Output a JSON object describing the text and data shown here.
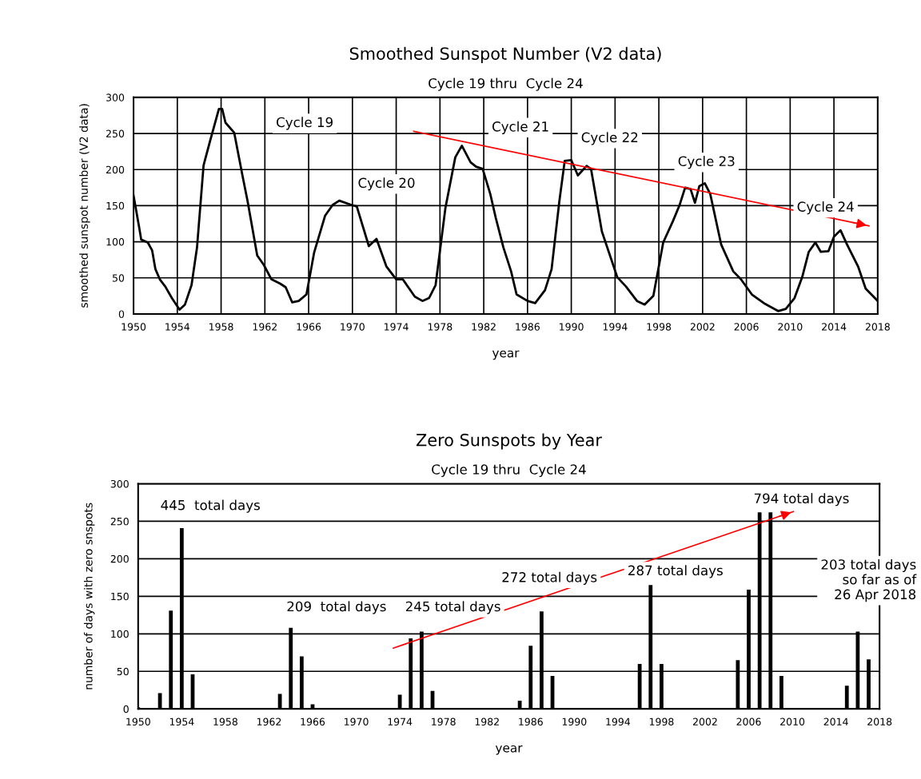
{
  "chart_data": [
    {
      "type": "line",
      "title": "Smoothed Sunspot Number (V2 data)",
      "subtitle": "Cycle 19 thru  Cycle 24",
      "xlabel": "year",
      "ylabel": "smoothed sunspot number (V2 data)",
      "xlim": [
        1950,
        2018
      ],
      "xticks": [
        1950,
        1954,
        1958,
        1962,
        1966,
        1970,
        1974,
        1978,
        1982,
        1986,
        1990,
        1994,
        1998,
        2002,
        2006,
        2010,
        2014,
        2018
      ],
      "ylim": [
        0,
        300
      ],
      "yticks": [
        0,
        50,
        100,
        150,
        200,
        250,
        300
      ],
      "grid": true,
      "marker": "none",
      "line_style": "solid",
      "series": [
        {
          "color": "#000000",
          "x": [
            1950.0,
            1950.5,
            1950.7,
            1951.3,
            1951.7,
            1952.0,
            1952.4,
            1952.9,
            1953.5,
            1954.2,
            1954.7,
            1955.3,
            1955.8,
            1956.4,
            1957.0,
            1957.8,
            1958.1,
            1958.4,
            1959.2,
            1960.0,
            1960.4,
            1961.3,
            1961.9,
            1962.6,
            1963.4,
            1963.9,
            1964.5,
            1965.1,
            1965.8,
            1966.5,
            1967.5,
            1968.2,
            1968.8,
            1969.9,
            1970.4,
            1971.5,
            1972.2,
            1973.1,
            1974.0,
            1974.6,
            1975.7,
            1976.4,
            1977.0,
            1977.6,
            1978.5,
            1979.4,
            1980.0,
            1980.8,
            1981.3,
            1981.9,
            1982.6,
            1983.1,
            1983.8,
            1984.5,
            1985.0,
            1986.0,
            1986.7,
            1987.6,
            1988.2,
            1988.9,
            1989.4,
            1990.0,
            1990.6,
            1991.4,
            1991.8,
            1992.8,
            1994.2,
            1995.0,
            1996.0,
            1996.7,
            1997.5,
            1998.4,
            1999.3,
            1999.9,
            2000.4,
            2000.9,
            2001.3,
            2001.7,
            2002.2,
            2002.7,
            2003.7,
            2004.8,
            2005.5,
            2006.5,
            2007.7,
            2008.9,
            2009.6,
            2010.4,
            2011.1,
            2011.7,
            2012.3,
            2012.8,
            2013.5,
            2014.0,
            2014.6,
            2015.2,
            2016.2,
            2016.9,
            2018.0
          ],
          "values": [
            164,
            121,
            103,
            99,
            88,
            62,
            48,
            38,
            22,
            6,
            13,
            40,
            92,
            206,
            240,
            284,
            284,
            265,
            251,
            188,
            158,
            81,
            68,
            48,
            42,
            37,
            16,
            18,
            27,
            85,
            136,
            151,
            157,
            151,
            149,
            94,
            104,
            66,
            48,
            48,
            24,
            18,
            22,
            40,
            147,
            217,
            233,
            210,
            204,
            201,
            166,
            133,
            92,
            59,
            27,
            18,
            15,
            33,
            62,
            155,
            212,
            213,
            192,
            205,
            201,
            114,
            51,
            38,
            18,
            13,
            25,
            99,
            129,
            151,
            175,
            173,
            154,
            177,
            181,
            166,
            96,
            59,
            48,
            27,
            14,
            4,
            7,
            22,
            51,
            86,
            99,
            86,
            87,
            107,
            116,
            96,
            66,
            35,
            18
          ]
        },
        {
          "type": "line",
          "color": "#ff0000",
          "x": [
            1975.6,
            2017.2
          ],
          "values": [
            253,
            122
          ]
        }
      ],
      "annotations": [
        "Cycle 19",
        "Cycle 20",
        "Cycle 21",
        "Cycle 22",
        "Cycle 23",
        "Cycle 24"
      ]
    },
    {
      "type": "bar",
      "title": "Zero Sunspots by Year",
      "subtitle": "Cycle 19 thru  Cycle 24",
      "xlabel": "year",
      "ylabel": "number of days with zero snspots",
      "xlim": [
        1950,
        2018
      ],
      "xticks": [
        1950,
        1954,
        1958,
        1962,
        1966,
        1970,
        1974,
        1978,
        1982,
        1986,
        1990,
        1994,
        1998,
        2002,
        2006,
        2010,
        2014,
        2018
      ],
      "ylim": [
        0,
        300
      ],
      "yticks": [
        0,
        50,
        100,
        150,
        200,
        250,
        300
      ],
      "grid": "y",
      "series": [
        {
          "color": "#000000",
          "x": [
            1950,
            1952,
            1953,
            1954,
            1955,
            1963,
            1964,
            1965,
            1966,
            1974,
            1975,
            1976,
            1977,
            1985,
            1986,
            1987,
            1988,
            1996,
            1997,
            1998,
            2005,
            2006,
            2007,
            2008,
            2009,
            2015,
            2016,
            2017
          ],
          "values": [
            2,
            21,
            131,
            241,
            46,
            20,
            108,
            70,
            6,
            19,
            94,
            103,
            24,
            11,
            84,
            130,
            44,
            60,
            165,
            60,
            65,
            159,
            262,
            262,
            44,
            31,
            103,
            66
          ]
        },
        {
          "type": "line",
          "color": "#ff0000",
          "x": [
            1973.4,
            2010.1
          ],
          "values": [
            81,
            263
          ]
        }
      ],
      "annotations": [
        "445  total days",
        "209  total days",
        "245 total days",
        "272 total days",
        "287 total days",
        "794 total days",
        "203 total days\nso far as of\n26 Apr 2018"
      ]
    }
  ]
}
